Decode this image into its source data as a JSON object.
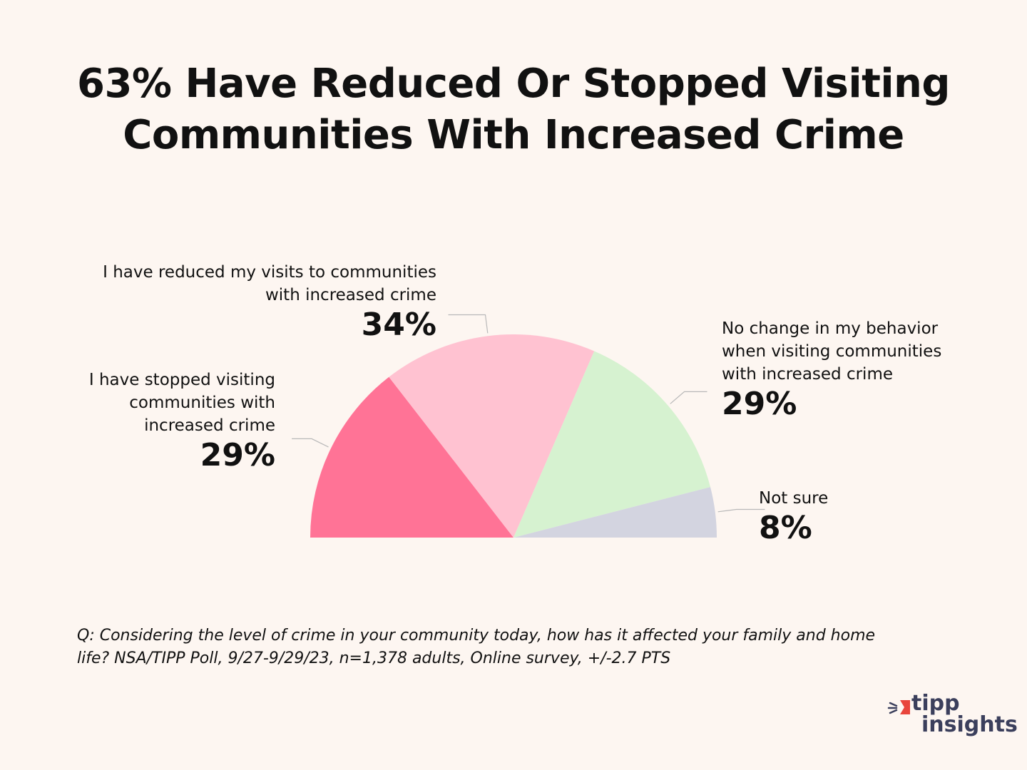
{
  "title_lines": [
    "63% Have Reduced Or Stopped Visiting",
    "Communities With Increased Crime"
  ],
  "chart_data": {
    "type": "pie",
    "subtype": "half-donut",
    "title": "63% Have Reduced Or Stopped Visiting Communities With Increased Crime",
    "categories": [
      "I have stopped visiting communities with increased crime",
      "I have reduced my visits to communities with increased crime",
      "No change in my behavior when visiting communities with increased crime",
      "Not sure"
    ],
    "values": [
      29,
      34,
      29,
      8
    ],
    "value_labels": [
      "29%",
      "34%",
      "29%",
      "8%"
    ],
    "colors": [
      "#ff7396",
      "#ffc2d1",
      "#d6f2d0",
      "#d3d4e0"
    ],
    "label_lines": [
      [
        "I have stopped visiting",
        "communities with",
        "increased crime"
      ],
      [
        "I have reduced my visits to communities",
        "with increased crime"
      ],
      [
        "No change in my behavior",
        "when visiting communities",
        "with increased crime"
      ],
      [
        "Not sure"
      ]
    ]
  },
  "footnote_lines": [
    "Q:  Considering the level of crime in your community today, how has it affected your family and home",
    "life? NSA/TIPP Poll, 9/27-9/29/23, n=1,378 adults, Online survey, +/-2.7 PTS"
  ],
  "logo": {
    "line1": "tipp",
    "line2": "insights",
    "accent_color": "#e8453c",
    "text_color": "#3b3f5c"
  }
}
